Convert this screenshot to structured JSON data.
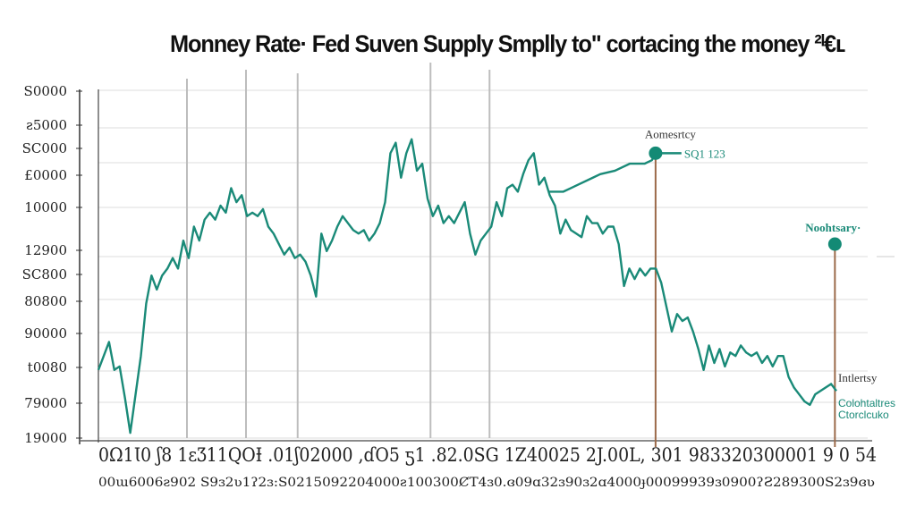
{
  "chart_data": {
    "type": "line",
    "title": "Monney Rate· Fed Suven Supply Smplly to\" cortacing the money ²ᴵ€ʟ",
    "xlabel": "",
    "ylabel": "",
    "xlim": [
      0,
      100
    ],
    "ylim": [
      0,
      100
    ],
    "grid": true,
    "y_tick_labels": [
      "S0000",
      "ƨ5000",
      "SC000",
      "£0000",
      "10000",
      "12900",
      "SC800",
      "80800",
      "90000",
      "t0080",
      "79000",
      "19000"
    ],
    "x_tick_rows": [
      "0Ω1Ꙇ0  ʃ8 1ɛƷ11QOƗ .01ʃ02000 ,ɗO5 ƽ1 .82.0SG 1Z40025 2J.00L, 301 983320300001 9 0 54",
      "00ɯ6006ƨ902 S9ɜ2ʋ1ʔ2ɜ:S0215092204000ƨ100300ȻT4ɜ0.ɞ09ɑ32ɜ90ɜ2ɑ4000ɟ00099939ɜ0900ʔƧ289300S2ɜ9ɞʋ"
    ],
    "series": [
      {
        "color": "#1a8a78",
        "values": [
          20,
          24,
          28,
          20,
          21,
          12,
          2,
          13,
          24,
          39,
          47,
          43,
          47,
          49,
          52,
          49,
          57,
          52,
          61,
          57,
          63,
          65,
          63,
          67,
          65,
          72,
          68,
          70,
          64,
          65,
          64,
          66,
          61,
          59,
          56,
          53,
          55,
          52,
          53,
          51,
          47,
          41,
          59,
          54,
          57,
          61,
          64,
          62,
          60,
          59,
          60,
          57,
          59,
          62,
          68,
          82,
          85,
          75,
          82,
          86,
          77,
          79,
          69,
          64,
          67,
          62,
          64,
          62,
          65,
          68,
          59,
          53,
          57,
          59,
          61,
          68,
          64,
          72,
          73,
          71,
          76,
          80,
          82,
          73,
          75,
          70,
          67,
          59,
          63,
          60,
          59,
          58,
          64,
          62,
          62,
          59,
          61,
          61,
          56,
          44,
          49,
          46,
          49,
          47,
          49,
          49,
          45,
          38,
          31,
          36,
          34,
          35,
          31,
          26,
          20,
          27,
          22,
          26,
          21,
          25,
          24,
          27,
          25,
          24,
          25,
          22,
          24,
          21,
          24,
          24,
          18,
          15,
          13,
          11,
          10,
          13,
          14,
          15,
          16,
          14
        ]
      },
      {
        "color": "#1a8a78",
        "points": [
          [
            61,
            71
          ],
          [
            63,
            71
          ],
          [
            65,
            73
          ],
          [
            67,
            75
          ],
          [
            68,
            76
          ],
          [
            70,
            77
          ],
          [
            72,
            79
          ],
          [
            74,
            79
          ],
          [
            75,
            80
          ],
          [
            75.5,
            82
          ],
          [
            79,
            82
          ]
        ]
      }
    ],
    "vertical_lines": [
      {
        "x": 12
      },
      {
        "x": 20
      },
      {
        "x": 27
      },
      {
        "x": 45
      },
      {
        "x": 53
      }
    ],
    "markers": [
      {
        "x": 75.5,
        "y": 82,
        "label": "Aomesrtcy",
        "value_label": "SQ1 123"
      },
      {
        "x": 99.8,
        "y": 56,
        "label": "Noohtsary·"
      }
    ],
    "annotations": [
      "Intlertsy",
      "Colohtaltres",
      "Ctorclcuko"
    ],
    "colors": {
      "line": "#1a8a78",
      "marker_stem": "#9b6a4a",
      "grid": "#dddddd",
      "text": "#111111"
    }
  }
}
